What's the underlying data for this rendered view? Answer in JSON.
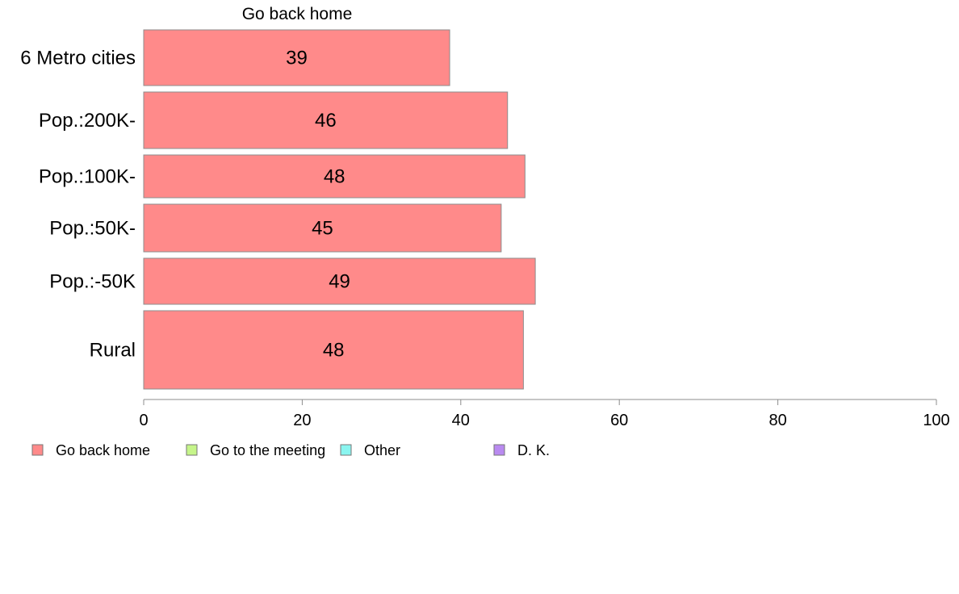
{
  "chart_data": {
    "type": "bar",
    "orientation": "horizontal",
    "panel_title": "Go back home",
    "categories": [
      "6 Metro cities",
      "Pop.:200K-",
      "Pop.:100K-",
      "Pop.:50K-",
      "Pop.:-50K",
      "Rural"
    ],
    "series": [
      {
        "name": "Go back home",
        "color": "#ff8a8a",
        "values": [
          38.6,
          45.9,
          48.1,
          45.1,
          49.4,
          47.9
        ],
        "labels": [
          "39",
          "46",
          "48",
          "45",
          "49",
          "48"
        ]
      }
    ],
    "xlim": [
      0,
      100
    ],
    "xticks": [
      0,
      20,
      40,
      60,
      80,
      100
    ],
    "xtick_labels": [
      "0",
      "20",
      "40",
      "60",
      "80",
      "100"
    ],
    "grid": false,
    "legend": {
      "placement": "bottom-left",
      "items": [
        {
          "label": "Go back home",
          "color": "#ff8a8a"
        },
        {
          "label": "Go to the meeting",
          "color": "#c6f58a"
        },
        {
          "label": "Other",
          "color": "#8af5f0"
        },
        {
          "label": "D. K.",
          "color": "#b98af0"
        }
      ]
    }
  }
}
